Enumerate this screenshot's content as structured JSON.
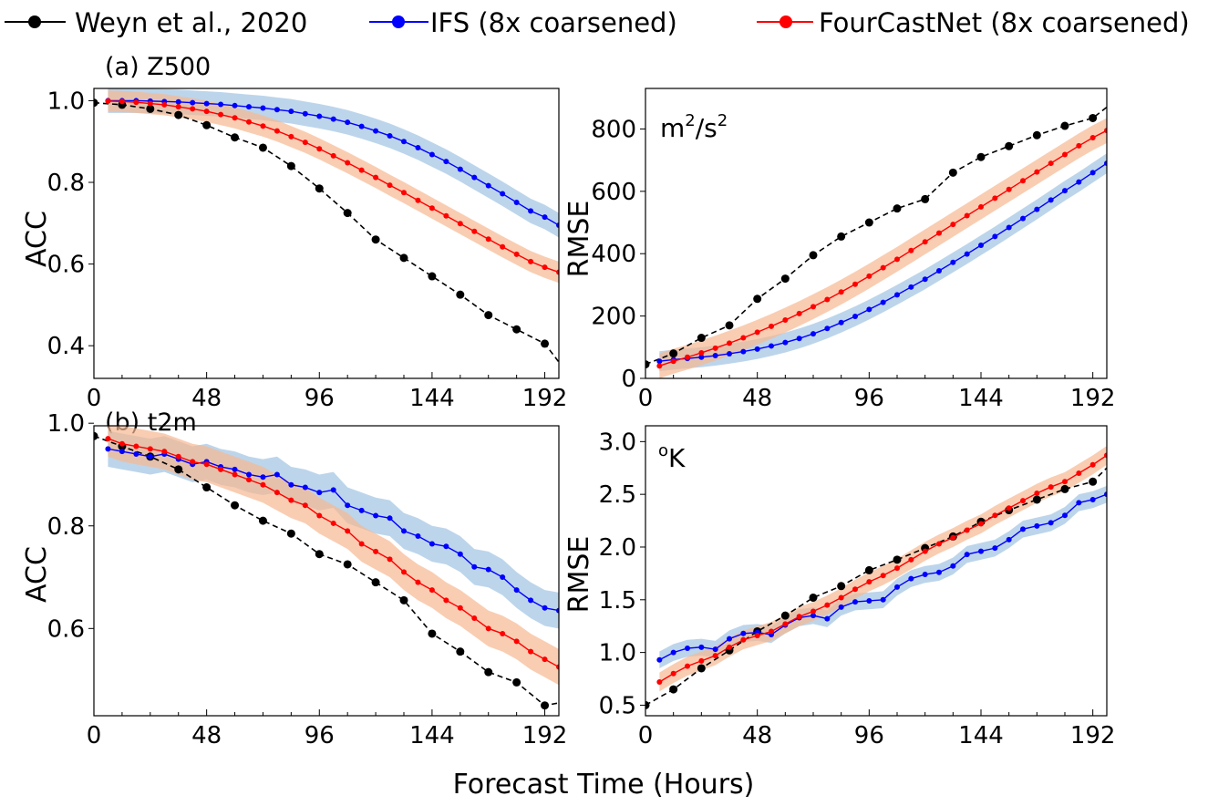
{
  "figure": {
    "legend": [
      {
        "label": "Weyn et al., 2020",
        "color": "#000000",
        "dashed": true
      },
      {
        "label": "IFS (8x coarsened)",
        "color": "#0000ff",
        "dashed": false
      },
      {
        "label": "FourCastNet (8x coarsened)",
        "color": "#ff0000",
        "dashed": false
      }
    ],
    "xlabel": "Forecast Time (Hours)",
    "band_colors": {
      "IFS (8x coarsened)": "#9fc3e2",
      "FourCastNet (8x coarsened)": "#f6b892"
    }
  },
  "chart_data": [
    {
      "type": "line",
      "panel_title": "(a) Z500",
      "ylabel": "ACC",
      "unit_label": "",
      "xlim": [
        0,
        198
      ],
      "ylim": [
        0.32,
        1.03
      ],
      "xticks": [
        0,
        48,
        96,
        144,
        192
      ],
      "yticks": [
        0.4,
        0.6,
        0.8,
        1.0
      ],
      "ytick_labels": [
        "0.4",
        "0.6",
        "0.8",
        "1.0"
      ],
      "series": [
        {
          "name": "Weyn et al., 2020",
          "x": [
            0,
            12,
            24,
            36,
            48,
            60,
            72,
            84,
            96,
            108,
            120,
            132,
            144,
            156,
            168,
            180,
            192,
            198
          ],
          "y": [
            0.995,
            0.99,
            0.98,
            0.965,
            0.94,
            0.91,
            0.885,
            0.84,
            0.785,
            0.725,
            0.66,
            0.615,
            0.57,
            0.525,
            0.475,
            0.44,
            0.405,
            0.36
          ]
        },
        {
          "name": "IFS (8x coarsened)",
          "x": [
            6,
            12,
            18,
            24,
            30,
            36,
            42,
            48,
            54,
            60,
            66,
            72,
            78,
            84,
            90,
            96,
            102,
            108,
            114,
            120,
            126,
            132,
            138,
            144,
            150,
            156,
            162,
            168,
            174,
            180,
            186,
            192,
            198
          ],
          "y": [
            1.0,
            1.0,
            1.0,
            0.999,
            0.998,
            0.997,
            0.995,
            0.993,
            0.991,
            0.988,
            0.985,
            0.982,
            0.978,
            0.974,
            0.968,
            0.962,
            0.955,
            0.947,
            0.937,
            0.926,
            0.914,
            0.9,
            0.885,
            0.868,
            0.851,
            0.832,
            0.812,
            0.792,
            0.772,
            0.751,
            0.73,
            0.715,
            0.695
          ],
          "spread": 0.03
        },
        {
          "name": "FourCastNet (8x coarsened)",
          "x": [
            6,
            12,
            18,
            24,
            30,
            36,
            42,
            48,
            54,
            60,
            66,
            72,
            78,
            84,
            90,
            96,
            102,
            108,
            114,
            120,
            126,
            132,
            138,
            144,
            150,
            156,
            162,
            168,
            174,
            180,
            186,
            192,
            198
          ],
          "y": [
            0.999,
            0.998,
            0.996,
            0.993,
            0.99,
            0.985,
            0.98,
            0.974,
            0.966,
            0.958,
            0.948,
            0.938,
            0.926,
            0.912,
            0.898,
            0.882,
            0.865,
            0.848,
            0.83,
            0.812,
            0.793,
            0.775,
            0.756,
            0.737,
            0.718,
            0.699,
            0.68,
            0.661,
            0.642,
            0.624,
            0.606,
            0.592,
            0.58
          ],
          "spread": 0.026
        }
      ]
    },
    {
      "type": "line",
      "panel_title": "",
      "ylabel": "RMSE",
      "unit_base": "m",
      "unit_sup1": "2",
      "unit_mid": "/s",
      "unit_sup2": "2",
      "xlim": [
        0,
        198
      ],
      "ylim": [
        0,
        930
      ],
      "xticks": [
        0,
        48,
        96,
        144,
        192
      ],
      "yticks": [
        0,
        200,
        400,
        600,
        800
      ],
      "ytick_labels": [
        "0",
        "200",
        "400",
        "600",
        "800"
      ],
      "series": [
        {
          "name": "Weyn et al., 2020",
          "x": [
            0,
            12,
            24,
            36,
            48,
            60,
            72,
            84,
            96,
            108,
            120,
            132,
            144,
            156,
            168,
            180,
            192,
            198
          ],
          "y": [
            45,
            80,
            130,
            170,
            255,
            320,
            395,
            455,
            500,
            545,
            575,
            660,
            710,
            745,
            780,
            810,
            835,
            870
          ]
        },
        {
          "name": "IFS (8x coarsened)",
          "x": [
            6,
            12,
            18,
            24,
            30,
            36,
            42,
            48,
            54,
            60,
            66,
            72,
            78,
            84,
            90,
            96,
            102,
            108,
            114,
            120,
            126,
            132,
            138,
            144,
            150,
            156,
            162,
            168,
            174,
            180,
            186,
            192,
            198
          ],
          "y": [
            55,
            60,
            64,
            68,
            73,
            79,
            86,
            94,
            104,
            115,
            128,
            143,
            160,
            179,
            199,
            221,
            244,
            268,
            293,
            318,
            345,
            372,
            399,
            427,
            455,
            484,
            513,
            542,
            572,
            602,
            630,
            660,
            690
          ],
          "spread": 32
        },
        {
          "name": "FourCastNet (8x coarsened)",
          "x": [
            6,
            12,
            18,
            24,
            30,
            36,
            42,
            48,
            54,
            60,
            66,
            72,
            78,
            84,
            90,
            96,
            102,
            108,
            114,
            120,
            126,
            132,
            138,
            144,
            150,
            156,
            162,
            168,
            174,
            180,
            186,
            192,
            198
          ],
          "y": [
            40,
            55,
            68,
            82,
            97,
            113,
            130,
            148,
            167,
            187,
            208,
            230,
            253,
            277,
            302,
            328,
            355,
            382,
            410,
            438,
            466,
            494,
            522,
            550,
            578,
            606,
            634,
            662,
            690,
            718,
            746,
            772,
            795
          ],
          "spread": 40
        }
      ]
    },
    {
      "type": "line",
      "panel_title": "(b) t2m",
      "ylabel": "ACC",
      "unit_label": "",
      "xlim": [
        0,
        198
      ],
      "ylim": [
        0.43,
        0.995
      ],
      "xticks": [
        0,
        48,
        96,
        144,
        192
      ],
      "yticks": [
        0.6,
        0.8,
        1.0
      ],
      "ytick_labels": [
        "0.6",
        "0.8",
        "1.0"
      ],
      "series": [
        {
          "name": "Weyn et al., 2020",
          "x": [
            0,
            12,
            24,
            36,
            48,
            60,
            72,
            84,
            96,
            108,
            120,
            132,
            144,
            156,
            168,
            180,
            192,
            198
          ],
          "y": [
            0.975,
            0.955,
            0.935,
            0.91,
            0.875,
            0.84,
            0.81,
            0.785,
            0.745,
            0.725,
            0.69,
            0.655,
            0.59,
            0.555,
            0.515,
            0.495,
            0.45,
            0.455
          ]
        },
        {
          "name": "IFS (8x coarsened)",
          "x": [
            6,
            12,
            18,
            24,
            30,
            36,
            42,
            48,
            54,
            60,
            66,
            72,
            78,
            84,
            90,
            96,
            102,
            108,
            114,
            120,
            126,
            132,
            138,
            144,
            150,
            156,
            162,
            168,
            174,
            180,
            186,
            192,
            198
          ],
          "y": [
            0.95,
            0.945,
            0.94,
            0.935,
            0.94,
            0.93,
            0.92,
            0.925,
            0.915,
            0.91,
            0.9,
            0.895,
            0.9,
            0.88,
            0.875,
            0.865,
            0.87,
            0.84,
            0.83,
            0.82,
            0.815,
            0.79,
            0.78,
            0.765,
            0.76,
            0.745,
            0.72,
            0.715,
            0.7,
            0.675,
            0.655,
            0.64,
            0.635
          ],
          "spread": 0.035
        },
        {
          "name": "FourCastNet (8x coarsened)",
          "x": [
            6,
            12,
            18,
            24,
            30,
            36,
            42,
            48,
            54,
            60,
            66,
            72,
            78,
            84,
            90,
            96,
            102,
            108,
            114,
            120,
            126,
            132,
            138,
            144,
            150,
            156,
            162,
            168,
            174,
            180,
            186,
            192,
            198
          ],
          "y": [
            0.97,
            0.96,
            0.955,
            0.95,
            0.945,
            0.935,
            0.925,
            0.92,
            0.91,
            0.9,
            0.89,
            0.88,
            0.865,
            0.85,
            0.84,
            0.82,
            0.805,
            0.79,
            0.765,
            0.75,
            0.735,
            0.71,
            0.69,
            0.675,
            0.655,
            0.64,
            0.62,
            0.6,
            0.59,
            0.575,
            0.555,
            0.54,
            0.525
          ],
          "spread": 0.035
        }
      ]
    },
    {
      "type": "line",
      "panel_title": "",
      "ylabel": "RMSE",
      "unit_base": "",
      "unit_prefix_sup": "o",
      "unit_after": "K",
      "xlim": [
        0,
        198
      ],
      "ylim": [
        0.4,
        3.15
      ],
      "xticks": [
        0,
        48,
        96,
        144,
        192
      ],
      "yticks": [
        0.5,
        1.0,
        1.5,
        2.0,
        2.5,
        3.0
      ],
      "ytick_labels": [
        "0.5",
        "1.0",
        "1.5",
        "2.0",
        "2.5",
        "3.0"
      ],
      "series": [
        {
          "name": "Weyn et al., 2020",
          "x": [
            0,
            12,
            24,
            36,
            48,
            60,
            72,
            84,
            96,
            108,
            120,
            132,
            144,
            156,
            168,
            180,
            192,
            198
          ],
          "y": [
            0.5,
            0.65,
            0.85,
            1.02,
            1.2,
            1.35,
            1.52,
            1.63,
            1.78,
            1.88,
            1.99,
            2.1,
            2.24,
            2.35,
            2.45,
            2.55,
            2.62,
            2.75
          ]
        },
        {
          "name": "IFS (8x coarsened)",
          "x": [
            6,
            12,
            18,
            24,
            30,
            36,
            42,
            48,
            54,
            60,
            66,
            72,
            78,
            84,
            90,
            96,
            102,
            108,
            114,
            120,
            126,
            132,
            138,
            144,
            150,
            156,
            162,
            168,
            174,
            180,
            186,
            192,
            198
          ],
          "y": [
            0.93,
            1.0,
            1.04,
            1.05,
            1.03,
            1.13,
            1.18,
            1.19,
            1.17,
            1.26,
            1.33,
            1.35,
            1.32,
            1.43,
            1.48,
            1.49,
            1.5,
            1.62,
            1.7,
            1.74,
            1.76,
            1.82,
            1.93,
            1.96,
            1.99,
            2.07,
            2.17,
            2.2,
            2.23,
            2.3,
            2.42,
            2.45,
            2.5
          ],
          "spread": 0.08
        },
        {
          "name": "FourCastNet (8x coarsened)",
          "x": [
            6,
            12,
            18,
            24,
            30,
            36,
            42,
            48,
            54,
            60,
            66,
            72,
            78,
            84,
            90,
            96,
            102,
            108,
            114,
            120,
            126,
            132,
            138,
            144,
            150,
            156,
            162,
            168,
            174,
            180,
            186,
            192,
            198
          ],
          "y": [
            0.72,
            0.8,
            0.87,
            0.92,
            0.97,
            1.05,
            1.12,
            1.16,
            1.2,
            1.27,
            1.34,
            1.39,
            1.45,
            1.52,
            1.6,
            1.67,
            1.73,
            1.8,
            1.88,
            1.96,
            2.03,
            2.09,
            2.16,
            2.22,
            2.3,
            2.37,
            2.44,
            2.51,
            2.57,
            2.62,
            2.7,
            2.78,
            2.87
          ],
          "spread": 0.09
        }
      ]
    }
  ]
}
